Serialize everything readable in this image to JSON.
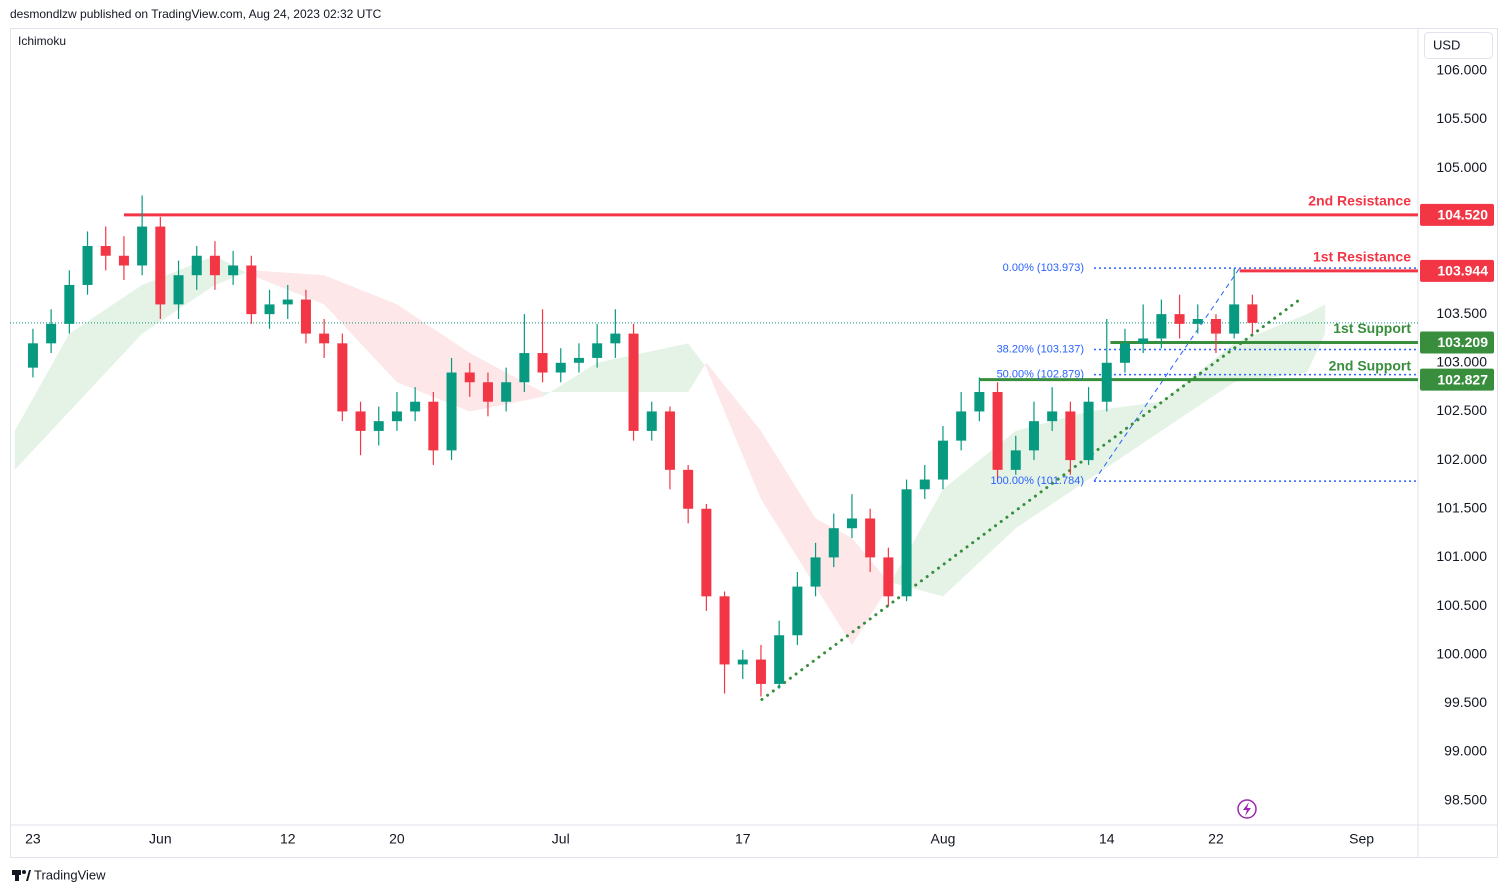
{
  "header": {
    "publisher": "desmondlzw published on TradingView.com, Aug 24, 2023 02:32 UTC",
    "indicator": "Ichimoku",
    "currency": "USD",
    "brand": "TradingView"
  },
  "chart_data": {
    "type": "candlestick",
    "categories": [
      null,
      null,
      null,
      null,
      null,
      null,
      null,
      null,
      null,
      null,
      null,
      null,
      null,
      null,
      null,
      null,
      null,
      null,
      null,
      null,
      null,
      null,
      null,
      null,
      null,
      null,
      null,
      null,
      null,
      null,
      null,
      null,
      null,
      null,
      null,
      null,
      null,
      null,
      null,
      null,
      null,
      null,
      null,
      null,
      null,
      null,
      null,
      null,
      null,
      null,
      null,
      null,
      null,
      null,
      null,
      null,
      null,
      null,
      null,
      null,
      null,
      null,
      null,
      null,
      null,
      null,
      null,
      null
    ],
    "open": [
      102.95,
      103.2,
      103.4,
      103.8,
      104.2,
      104.1,
      104.0,
      104.4,
      103.6,
      103.9,
      104.1,
      103.9,
      104.0,
      103.5,
      103.6,
      103.65,
      103.3,
      103.2,
      102.5,
      102.3,
      102.4,
      102.5,
      102.6,
      102.1,
      102.9,
      102.8,
      102.6,
      102.8,
      103.1,
      102.9,
      103.0,
      103.05,
      103.2,
      103.3,
      102.3,
      102.5,
      101.9,
      101.5,
      100.6,
      99.9,
      99.95,
      99.7,
      100.2,
      100.7,
      101.0,
      101.3,
      101.4,
      101.0,
      100.6,
      101.7,
      101.8,
      102.2,
      102.5,
      102.7,
      101.9,
      102.1,
      102.4,
      102.5,
      102.0,
      102.6,
      103.0,
      103.2,
      103.25,
      103.5,
      103.4,
      103.45,
      103.3,
      103.6
    ],
    "high": [
      103.35,
      103.55,
      103.95,
      104.35,
      104.4,
      104.3,
      104.72,
      104.5,
      104.05,
      104.2,
      104.25,
      104.15,
      104.1,
      103.75,
      103.8,
      103.75,
      103.45,
      103.3,
      102.6,
      102.55,
      102.7,
      102.75,
      102.7,
      103.05,
      103.0,
      102.9,
      102.95,
      103.5,
      103.55,
      103.15,
      103.2,
      103.4,
      103.55,
      103.4,
      102.6,
      102.55,
      101.95,
      101.55,
      100.65,
      100.05,
      100.1,
      100.35,
      100.85,
      101.15,
      101.45,
      101.65,
      101.5,
      101.1,
      101.8,
      101.95,
      102.35,
      102.7,
      102.85,
      102.8,
      102.25,
      102.6,
      102.75,
      102.6,
      102.75,
      103.45,
      103.35,
      103.6,
      103.65,
      103.7,
      103.6,
      103.5,
      103.97,
      103.7
    ],
    "low": [
      102.85,
      103.1,
      103.3,
      103.7,
      103.95,
      103.85,
      103.9,
      103.45,
      103.45,
      103.75,
      103.75,
      103.8,
      103.4,
      103.35,
      103.45,
      103.2,
      103.05,
      102.4,
      102.05,
      102.15,
      102.3,
      102.4,
      101.95,
      102.0,
      102.65,
      102.45,
      102.5,
      102.7,
      102.8,
      102.8,
      102.9,
      102.95,
      103.05,
      102.2,
      102.2,
      101.7,
      101.35,
      100.45,
      99.6,
      99.75,
      99.57,
      99.65,
      100.1,
      100.6,
      100.9,
      101.2,
      100.85,
      100.5,
      100.55,
      101.6,
      101.7,
      102.1,
      102.4,
      101.78,
      101.85,
      102.0,
      102.3,
      101.85,
      101.95,
      102.5,
      102.9,
      103.1,
      103.15,
      103.25,
      103.3,
      103.1,
      103.25,
      103.3
    ],
    "close": [
      103.2,
      103.4,
      103.8,
      104.2,
      104.1,
      104.0,
      104.4,
      103.6,
      103.9,
      104.1,
      103.9,
      104.0,
      103.5,
      103.6,
      103.65,
      103.3,
      103.2,
      102.5,
      102.3,
      102.4,
      102.5,
      102.6,
      102.1,
      102.9,
      102.8,
      102.6,
      102.8,
      103.1,
      102.9,
      103.0,
      103.05,
      103.2,
      103.3,
      102.3,
      102.5,
      101.9,
      101.5,
      100.6,
      99.9,
      99.95,
      99.7,
      100.2,
      100.7,
      101.0,
      101.3,
      101.4,
      101.0,
      100.6,
      101.7,
      101.8,
      102.2,
      102.5,
      102.7,
      101.9,
      102.1,
      102.4,
      102.5,
      102.0,
      102.6,
      103.0,
      103.2,
      103.25,
      103.5,
      103.4,
      103.45,
      103.3,
      103.6,
      103.41
    ],
    "up_color": "#089981",
    "down_color": "#f23645",
    "xlim": [
      -1.26,
      76.1
    ],
    "xticks": [
      {
        "value": 0,
        "label": "23"
      },
      {
        "value": 7,
        "label": "Jun"
      },
      {
        "value": 14,
        "label": "12"
      },
      {
        "value": 20,
        "label": "20"
      },
      {
        "value": 29,
        "label": "Jul"
      },
      {
        "value": 39,
        "label": "17"
      },
      {
        "value": 50,
        "label": "Aug"
      },
      {
        "value": 59,
        "label": "14"
      },
      {
        "value": 65,
        "label": "22"
      },
      {
        "value": 73,
        "label": "Sep"
      }
    ],
    "ylim": [
      98.25,
      106.42
    ],
    "yticks": [
      {
        "value": 98.5,
        "label": "98.500"
      },
      {
        "value": 99,
        "label": "99.000"
      },
      {
        "value": 99.5,
        "label": "99.500"
      },
      {
        "value": 100,
        "label": "100.000"
      },
      {
        "value": 100.5,
        "label": "100.500"
      },
      {
        "value": 101,
        "label": "101.000"
      },
      {
        "value": 101.5,
        "label": "101.500"
      },
      {
        "value": 102,
        "label": "102.000"
      },
      {
        "value": 102.5,
        "label": "102.500"
      },
      {
        "value": 103,
        "label": "103.000"
      },
      {
        "value": 103.5,
        "label": "103.500"
      },
      {
        "value": 105,
        "label": "105.000"
      },
      {
        "value": 105.5,
        "label": "105.500"
      },
      {
        "value": 106,
        "label": "106.000"
      }
    ],
    "cloud": {
      "x": [
        -1,
        2,
        6,
        10,
        12,
        16,
        20,
        24,
        28,
        31,
        36,
        37,
        40,
        43,
        45,
        47,
        50,
        54,
        58,
        62,
        66,
        70,
        71
      ],
      "span_a": [
        102.3,
        103.3,
        103.8,
        104.1,
        103.9,
        103.6,
        102.8,
        102.5,
        102.65,
        103.0,
        103.2,
        102.95,
        101.6,
        100.7,
        100.1,
        100.7,
        101.7,
        102.3,
        102.5,
        102.6,
        103.2,
        103.5,
        103.6
      ],
      "span_b": [
        101.9,
        102.5,
        103.3,
        103.8,
        103.95,
        103.9,
        103.6,
        103.1,
        102.7,
        102.7,
        102.7,
        103.0,
        102.3,
        101.4,
        101.2,
        100.75,
        100.6,
        101.3,
        101.8,
        102.3,
        102.8,
        102.9,
        103.3
      ],
      "up_color": "#4caf50",
      "down_color": "#f23645"
    },
    "levels": [
      {
        "name": "2nd Resistance",
        "value": 104.52,
        "label": "104.520",
        "start": 5,
        "color": "#f23645"
      },
      {
        "name": "1st Resistance",
        "value": 103.944,
        "label": "103.944",
        "start": 66.3,
        "color": "#f23645"
      },
      {
        "name": "1st Support",
        "value": 103.209,
        "label": "103.209",
        "start": 59.2,
        "color": "#388e3c"
      },
      {
        "name": "2nd Support",
        "value": 102.827,
        "label": "102.827",
        "start": 52,
        "color": "#388e3c"
      }
    ],
    "fib_levels": [
      {
        "label": "0.00% (103.973)",
        "value": 103.973
      },
      {
        "label": "38.20% (103.137)",
        "value": 103.137
      },
      {
        "label": "50.00% (102.879)",
        "value": 102.879
      },
      {
        "label": "100.00% (101.784)",
        "value": 101.784
      }
    ],
    "fib_start": 58.3,
    "fib_color": "#2962ff",
    "fib_trend": {
      "x": [
        58.3,
        66.3
      ],
      "y": [
        101.784,
        103.973
      ]
    },
    "trendline": {
      "x": [
        40.05,
        69.6
      ],
      "y": [
        99.54,
        103.65
      ],
      "color": "#388e3c"
    }
  }
}
